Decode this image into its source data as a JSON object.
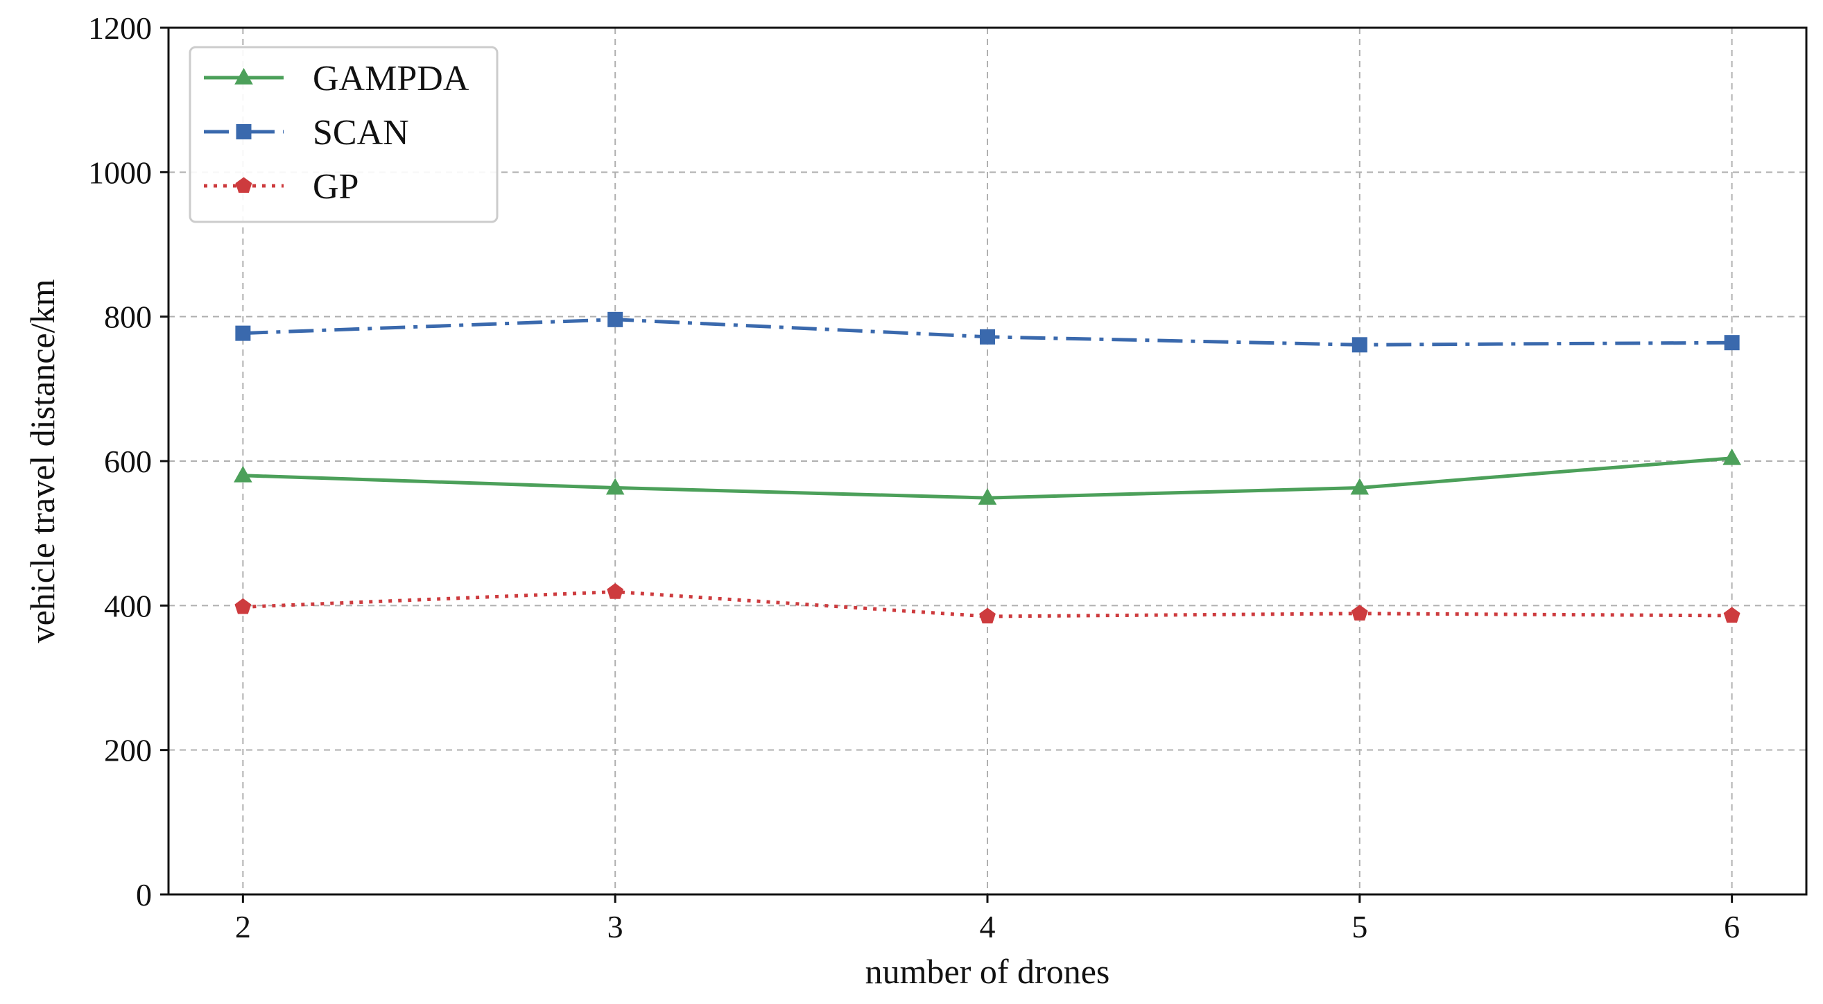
{
  "chart_data": {
    "type": "line",
    "title": "",
    "xlabel": "number of drones",
    "ylabel": "vehicle travel distance/km",
    "x": [
      2,
      3,
      4,
      5,
      6
    ],
    "xlim": [
      1.8,
      6.2
    ],
    "ylim": [
      0,
      1200
    ],
    "xticks": [
      "2",
      "3",
      "4",
      "5",
      "6"
    ],
    "yticks": [
      "0",
      "200",
      "400",
      "600",
      "800",
      "1000",
      "1200"
    ],
    "grid": true,
    "legend_position": "top-left",
    "series": [
      {
        "name": "GAMPDA",
        "values": [
          580,
          563,
          549,
          563,
          604
        ],
        "color": "#4ca05a",
        "line_style": "solid",
        "marker": "triangle"
      },
      {
        "name": "SCAN",
        "values": [
          777,
          796,
          772,
          761,
          764
        ],
        "color": "#3a69ad",
        "line_style": "dashdot",
        "marker": "square"
      },
      {
        "name": "GP",
        "values": [
          398,
          419,
          385,
          389,
          386
        ],
        "color": "#cd3b3e",
        "line_style": "dotted",
        "marker": "pentagon"
      }
    ]
  }
}
